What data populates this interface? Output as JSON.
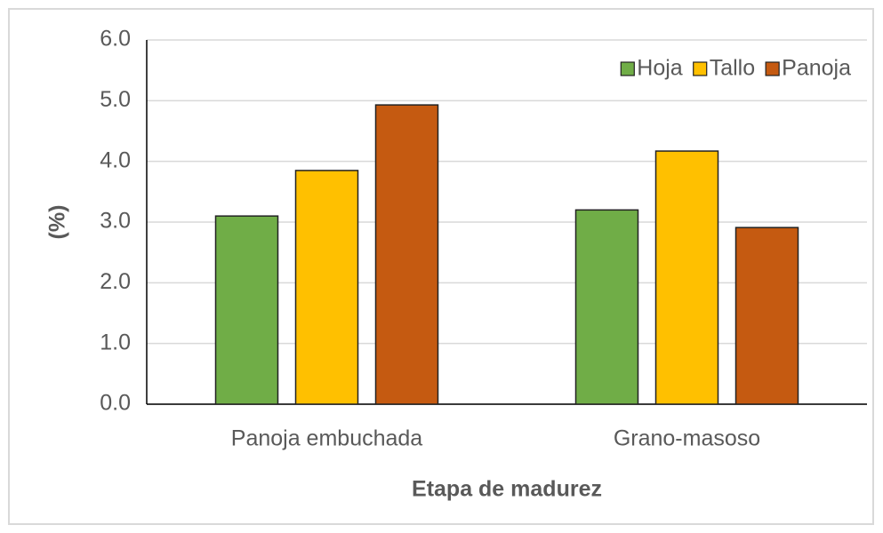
{
  "chart_data": {
    "type": "bar",
    "categories": [
      "Panoja embuchada",
      "Grano-masoso"
    ],
    "series": [
      {
        "name": "Hoja",
        "color": "#70ad47",
        "values": [
          3.1,
          3.2
        ]
      },
      {
        "name": "Tallo",
        "color": "#ffc000",
        "values": [
          3.85,
          4.17
        ]
      },
      {
        "name": "Panoja",
        "color": "#c55a11",
        "values": [
          4.93,
          2.91
        ]
      }
    ],
    "xlabel": "Etapa de madurez",
    "ylabel": "(%)",
    "ylim": [
      0,
      6
    ],
    "yticks": [
      {
        "value": 0,
        "label": "0.0"
      },
      {
        "value": 1,
        "label": "1.0"
      },
      {
        "value": 2,
        "label": "2.0"
      },
      {
        "value": 3,
        "label": "3.0"
      },
      {
        "value": 4,
        "label": "4.0"
      },
      {
        "value": 5,
        "label": "5.0"
      },
      {
        "value": 6,
        "label": "6.0"
      }
    ],
    "grid": true,
    "legend": "top-right"
  }
}
